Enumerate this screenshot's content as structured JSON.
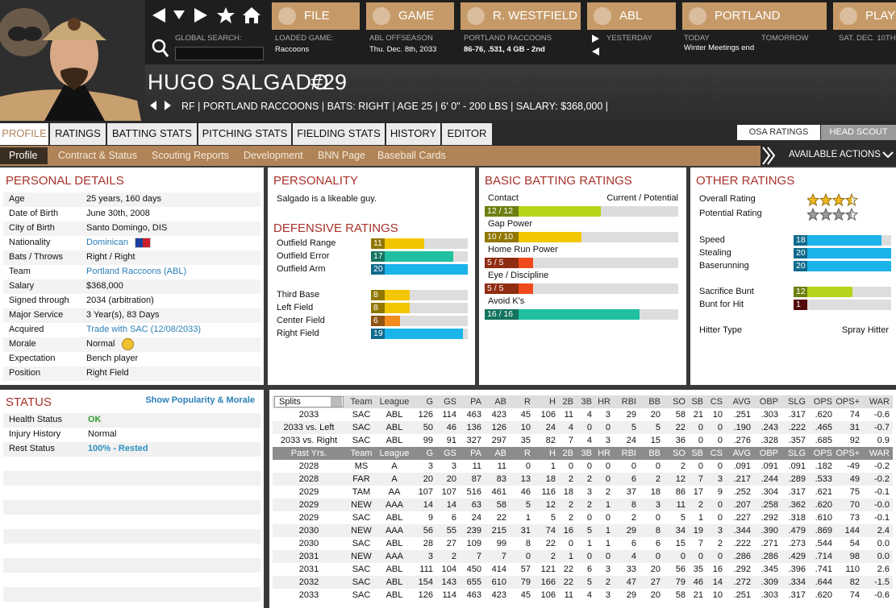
{
  "nav": {
    "buttons": [
      "FILE",
      "GAME",
      "R. WESTFIELD",
      "ABL",
      "PORTLAND",
      "PLAY"
    ]
  },
  "info": {
    "search_label": "GLOBAL SEARCH:",
    "items": [
      {
        "label": "LOADED GAME:",
        "value": "Raccoons"
      },
      {
        "label": "ABL OFFSEASON",
        "value": "Thu. Dec. 8th, 2033"
      },
      {
        "label": "PORTLAND RACCOONS",
        "value": "86-76, .531, 4 GB - 2nd"
      }
    ],
    "calendar": [
      {
        "label": "YESTERDAY"
      },
      {
        "label": "TODAY",
        "value": "Winter Meetings end"
      },
      {
        "label": "TOMORROW"
      },
      {
        "label": "SAT. DEC. 10TH"
      }
    ]
  },
  "player": {
    "name": "HUGO SALGADO",
    "number": "#29",
    "info": "RF | PORTLAND RACCOONS | BATS: RIGHT | AGE 25 | 6' 0\" - 200 LBS | SALARY: $368,000 |"
  },
  "tabs": [
    "PROFILE",
    "RATINGS",
    "BATTING STATS",
    "PITCHING STATS",
    "FIELDING STATS",
    "HISTORY",
    "EDITOR"
  ],
  "scout_tabs": [
    "OSA RATINGS",
    "HEAD SCOUT"
  ],
  "subtabs": [
    "Profile",
    "Contract & Status",
    "Scouting Reports",
    "Development",
    "BNN Page",
    "Baseball Cards"
  ],
  "actions": "AVAILABLE ACTIONS",
  "personal": {
    "title": "PERSONAL DETAILS",
    "rows": [
      {
        "label": "Age",
        "value": "25 years, 160 days"
      },
      {
        "label": "Date of Birth",
        "value": "June 30th, 2008"
      },
      {
        "label": "City of Birth",
        "value": "Santo Domingo, DIS"
      },
      {
        "label": "Nationality",
        "value": "Dominican",
        "color": "#2a7fb8"
      },
      {
        "label": "Bats / Throws",
        "value": "Right / Right"
      },
      {
        "label": "Team",
        "value": "Portland Raccoons (ABL)",
        "color": "#2a7fb8"
      },
      {
        "label": "Salary",
        "value": "$368,000"
      },
      {
        "label": "Signed through",
        "value": "2034 (arbitration)"
      },
      {
        "label": "Major Service",
        "value": "3 Year(s), 83 Days"
      },
      {
        "label": "Acquired",
        "value": "Trade with SAC (12/08/2033)",
        "color": "#2a7fb8"
      },
      {
        "label": "Morale",
        "value": "Normal"
      },
      {
        "label": "Expectation",
        "value": "Bench player"
      },
      {
        "label": "Position",
        "value": "Right Field"
      }
    ]
  },
  "personality": {
    "title": "PERSONALITY",
    "text": "Salgado is a likeable guy."
  },
  "defensive": {
    "title": "DEFENSIVE RATINGS",
    "rows": [
      {
        "name": "Outfield Range",
        "value": 11,
        "color": "#f2c600"
      },
      {
        "name": "Outfield Error",
        "value": 17,
        "color": "#1fbf9f"
      },
      {
        "name": "Outfield Arm",
        "value": 20,
        "color": "#1ab3ea"
      },
      {
        "name": "Third Base",
        "value": 8,
        "color": "#f2c600"
      },
      {
        "name": "Left Field",
        "value": 8,
        "color": "#f2c600"
      },
      {
        "name": "Center Field",
        "value": 6,
        "color": "#f28a1c"
      },
      {
        "name": "Right Field",
        "value": 19,
        "color": "#1ab3ea"
      }
    ]
  },
  "batting": {
    "title": "BASIC BATTING RATINGS",
    "legend": "Current / Potential",
    "rows": [
      {
        "name": "Contact",
        "value": 12,
        "potential": 12,
        "label": "12 / 12",
        "color": "#b5d41a"
      },
      {
        "name": "Gap Power",
        "value": 10,
        "potential": 10,
        "label": "10 / 10",
        "color": "#f2c600"
      },
      {
        "name": "Home Run Power",
        "value": 5,
        "potential": 5,
        "label": "5 / 5",
        "color": "#f04a1c"
      },
      {
        "name": "Eye / Discipline",
        "value": 5,
        "potential": 5,
        "label": "5 / 5",
        "color": "#f04a1c"
      },
      {
        "name": "Avoid K's",
        "value": 16,
        "potential": 16,
        "label": "16 / 16",
        "color": "#1fbf9f"
      }
    ]
  },
  "other": {
    "title": "OTHER RATINGS",
    "stars": [
      {
        "name": "Overall Rating",
        "value": 3.5,
        "color": "#f0b820"
      },
      {
        "name": "Potential Rating",
        "value": 3.5,
        "color": "#9a9a9a"
      }
    ],
    "rows": [
      {
        "name": "Speed",
        "value": 18,
        "color": "#1ab3ea"
      },
      {
        "name": "Stealing",
        "value": 20,
        "color": "#1ab3ea"
      },
      {
        "name": "Baserunning",
        "value": 20,
        "color": "#1ab3ea"
      },
      {
        "name": "Sacrifice Bunt",
        "value": 12,
        "color": "#b5d41a"
      },
      {
        "name": "Bunt for Hit",
        "value": 1,
        "color": "#8a1010"
      }
    ],
    "hitter_label": "Hitter Type",
    "hitter_value": "Spray Hitter"
  },
  "status": {
    "title": "STATUS",
    "link": "Show Popularity & Morale",
    "rows": [
      {
        "label": "Health Status",
        "value": "OK",
        "color": "#2e9e2e"
      },
      {
        "label": "Injury History",
        "value": "Normal"
      },
      {
        "label": "Rest Status",
        "value": "100% - Rested",
        "color": "#2a90c0"
      }
    ]
  },
  "stats": {
    "select": "Splits",
    "past_label": "Past Yrs.",
    "columns": [
      "Team",
      "League",
      "G",
      "GS",
      "PA",
      "AB",
      "R",
      "H",
      "2B",
      "3B",
      "HR",
      "RBI",
      "BB",
      "SO",
      "SB",
      "CS",
      "AVG",
      "OBP",
      "SLG",
      "OPS",
      "OPS+",
      "WAR"
    ],
    "splits": [
      [
        "2033",
        "SAC",
        "ABL",
        "126",
        "114",
        "463",
        "423",
        "45",
        "106",
        "11",
        "4",
        "3",
        "29",
        "20",
        "58",
        "21",
        "10",
        ".251",
        ".303",
        ".317",
        ".620",
        "74",
        "-0.6"
      ],
      [
        "2033 vs. Left",
        "SAC",
        "ABL",
        "50",
        "46",
        "136",
        "126",
        "10",
        "24",
        "4",
        "0",
        "0",
        "5",
        "5",
        "22",
        "0",
        "0",
        ".190",
        ".243",
        ".222",
        ".465",
        "31",
        "-0.7"
      ],
      [
        "2033 vs. Right",
        "SAC",
        "ABL",
        "99",
        "91",
        "327",
        "297",
        "35",
        "82",
        "7",
        "4",
        "3",
        "24",
        "15",
        "36",
        "0",
        "0",
        ".276",
        ".328",
        ".357",
        ".685",
        "92",
        "0.9"
      ]
    ],
    "past": [
      [
        "2028",
        "MS",
        "A",
        "3",
        "3",
        "11",
        "11",
        "0",
        "1",
        "0",
        "0",
        "0",
        "0",
        "0",
        "2",
        "0",
        "0",
        ".091",
        ".091",
        ".091",
        ".182",
        "-49",
        "-0.2"
      ],
      [
        "2028",
        "FAR",
        "A",
        "20",
        "20",
        "87",
        "83",
        "13",
        "18",
        "2",
        "2",
        "0",
        "6",
        "2",
        "12",
        "7",
        "3",
        ".217",
        ".244",
        ".289",
        ".533",
        "49",
        "-0.2"
      ],
      [
        "2029",
        "TAM",
        "AA",
        "107",
        "107",
        "516",
        "461",
        "46",
        "116",
        "18",
        "3",
        "2",
        "37",
        "18",
        "86",
        "17",
        "9",
        ".252",
        ".304",
        ".317",
        ".621",
        "75",
        "-0.1"
      ],
      [
        "2029",
        "NEW",
        "AAA",
        "14",
        "14",
        "63",
        "58",
        "5",
        "12",
        "2",
        "2",
        "1",
        "8",
        "3",
        "11",
        "2",
        "0",
        ".207",
        ".258",
        ".362",
        ".620",
        "70",
        "-0.0"
      ],
      [
        "2029",
        "SAC",
        "ABL",
        "9",
        "6",
        "24",
        "22",
        "1",
        "5",
        "2",
        "0",
        "0",
        "2",
        "0",
        "5",
        "1",
        "0",
        ".227",
        ".292",
        ".318",
        ".610",
        "73",
        "-0.1"
      ],
      [
        "2030",
        "NEW",
        "AAA",
        "56",
        "55",
        "239",
        "215",
        "31",
        "74",
        "16",
        "5",
        "1",
        "29",
        "8",
        "34",
        "19",
        "3",
        ".344",
        ".390",
        ".479",
        ".869",
        "144",
        "2.4"
      ],
      [
        "2030",
        "SAC",
        "ABL",
        "28",
        "27",
        "109",
        "99",
        "8",
        "22",
        "0",
        "1",
        "1",
        "6",
        "6",
        "15",
        "7",
        "2",
        ".222",
        ".271",
        ".273",
        ".544",
        "54",
        "0.0"
      ],
      [
        "2031",
        "NEW",
        "AAA",
        "3",
        "2",
        "7",
        "7",
        "0",
        "2",
        "1",
        "0",
        "0",
        "4",
        "0",
        "0",
        "0",
        "0",
        ".286",
        ".286",
        ".429",
        ".714",
        "98",
        "0.0"
      ],
      [
        "2031",
        "SAC",
        "ABL",
        "111",
        "104",
        "450",
        "414",
        "57",
        "121",
        "22",
        "6",
        "3",
        "33",
        "20",
        "56",
        "35",
        "16",
        ".292",
        ".345",
        ".396",
        ".741",
        "110",
        "2.6"
      ],
      [
        "2032",
        "SAC",
        "ABL",
        "154",
        "143",
        "655",
        "610",
        "79",
        "166",
        "22",
        "5",
        "2",
        "47",
        "27",
        "79",
        "46",
        "14",
        ".272",
        ".309",
        ".334",
        ".644",
        "82",
        "-1.5"
      ],
      [
        "2033",
        "SAC",
        "ABL",
        "126",
        "114",
        "463",
        "423",
        "45",
        "106",
        "11",
        "4",
        "3",
        "29",
        "20",
        "58",
        "21",
        "10",
        ".251",
        ".303",
        ".317",
        ".620",
        "74",
        "-0.6"
      ]
    ]
  }
}
